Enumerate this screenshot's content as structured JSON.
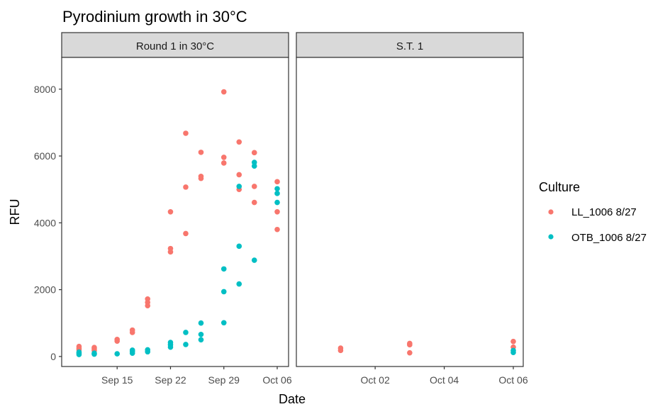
{
  "chart_data": {
    "type": "scatter",
    "title": "Pyrodinium growth in 30°C",
    "xlabel": "Date",
    "ylabel": "RFU",
    "ylim": [
      -300,
      8950
    ],
    "yticks": [
      0,
      2000,
      4000,
      6000,
      8000
    ],
    "grid": false,
    "legend": {
      "title": "Culture",
      "position": "right",
      "entries": [
        {
          "name": "LL_1006 8/27",
          "color": "#F8766D"
        },
        {
          "name": "OTB_1006 8/27",
          "color": "#00BFC4"
        }
      ]
    },
    "panels": [
      {
        "strip": "Round 1 in 30°C",
        "xlim": [
          "2020-09-09",
          "2020-10-06"
        ],
        "xticks": [
          {
            "date": "2020-09-15",
            "label": "Sep 15"
          },
          {
            "date": "2020-09-22",
            "label": "Sep 22"
          },
          {
            "date": "2020-09-29",
            "label": "Sep 29"
          },
          {
            "date": "2020-10-06",
            "label": "Oct 06"
          }
        ],
        "series": [
          {
            "name": "LL_1006 8/27",
            "color": "#F8766D",
            "points": [
              [
                "2020-09-10",
                200
              ],
              [
                "2020-09-10",
                250
              ],
              [
                "2020-09-10",
                300
              ],
              [
                "2020-09-12",
                180
              ],
              [
                "2020-09-12",
                230
              ],
              [
                "2020-09-12",
                270
              ],
              [
                "2020-09-15",
                460
              ],
              [
                "2020-09-15",
                510
              ],
              [
                "2020-09-17",
                720
              ],
              [
                "2020-09-17",
                790
              ],
              [
                "2020-09-19",
                1520
              ],
              [
                "2020-09-19",
                1620
              ],
              [
                "2020-09-19",
                1720
              ],
              [
                "2020-09-22",
                3130
              ],
              [
                "2020-09-22",
                3230
              ],
              [
                "2020-09-22",
                4330
              ],
              [
                "2020-09-24",
                3680
              ],
              [
                "2020-09-24",
                5070
              ],
              [
                "2020-09-24",
                6680
              ],
              [
                "2020-09-26",
                5330
              ],
              [
                "2020-09-26",
                5390
              ],
              [
                "2020-09-26",
                6110
              ],
              [
                "2020-09-29",
                5790
              ],
              [
                "2020-09-29",
                5960
              ],
              [
                "2020-09-29",
                7920
              ],
              [
                "2020-10-01",
                5000
              ],
              [
                "2020-10-01",
                5440
              ],
              [
                "2020-10-01",
                6420
              ],
              [
                "2020-10-03",
                4610
              ],
              [
                "2020-10-03",
                5090
              ],
              [
                "2020-10-03",
                6100
              ],
              [
                "2020-10-06",
                3800
              ],
              [
                "2020-10-06",
                4330
              ],
              [
                "2020-10-06",
                5230
              ]
            ]
          },
          {
            "name": "OTB_1006 8/27",
            "color": "#00BFC4",
            "points": [
              [
                "2020-09-10",
                60
              ],
              [
                "2020-09-10",
                100
              ],
              [
                "2020-09-10",
                130
              ],
              [
                "2020-09-12",
                70
              ],
              [
                "2020-09-12",
                100
              ],
              [
                "2020-09-15",
                80
              ],
              [
                "2020-09-17",
                100
              ],
              [
                "2020-09-17",
                150
              ],
              [
                "2020-09-17",
                190
              ],
              [
                "2020-09-19",
                140
              ],
              [
                "2020-09-19",
                200
              ],
              [
                "2020-09-22",
                280
              ],
              [
                "2020-09-22",
                350
              ],
              [
                "2020-09-22",
                420
              ],
              [
                "2020-09-24",
                360
              ],
              [
                "2020-09-24",
                720
              ],
              [
                "2020-09-26",
                500
              ],
              [
                "2020-09-26",
                660
              ],
              [
                "2020-09-26",
                1000
              ],
              [
                "2020-09-29",
                1010
              ],
              [
                "2020-09-29",
                1940
              ],
              [
                "2020-09-29",
                2620
              ],
              [
                "2020-10-01",
                2170
              ],
              [
                "2020-10-01",
                3300
              ],
              [
                "2020-10-01",
                5090
              ],
              [
                "2020-10-03",
                2880
              ],
              [
                "2020-10-03",
                5700
              ],
              [
                "2020-10-03",
                5810
              ],
              [
                "2020-10-06",
                4610
              ],
              [
                "2020-10-06",
                4880
              ],
              [
                "2020-10-06",
                5020
              ]
            ]
          }
        ]
      },
      {
        "strip": "S.T. 1",
        "xlim": [
          "2020-09-30",
          "2020-10-06"
        ],
        "xticks": [
          {
            "date": "2020-10-02",
            "label": "Oct 02"
          },
          {
            "date": "2020-10-04",
            "label": "Oct 04"
          },
          {
            "date": "2020-10-06",
            "label": "Oct 06"
          }
        ],
        "series": [
          {
            "name": "LL_1006 8/27",
            "color": "#F8766D",
            "points": [
              [
                "2020-10-01",
                180
              ],
              [
                "2020-10-01",
                250
              ],
              [
                "2020-10-03",
                110
              ],
              [
                "2020-10-03",
                350
              ],
              [
                "2020-10-03",
                390
              ],
              [
                "2020-10-06",
                280
              ],
              [
                "2020-10-06",
                450
              ]
            ]
          },
          {
            "name": "OTB_1006 8/27",
            "color": "#00BFC4",
            "points": [
              [
                "2020-10-06",
                120
              ],
              [
                "2020-10-06",
                180
              ]
            ]
          }
        ]
      }
    ]
  }
}
